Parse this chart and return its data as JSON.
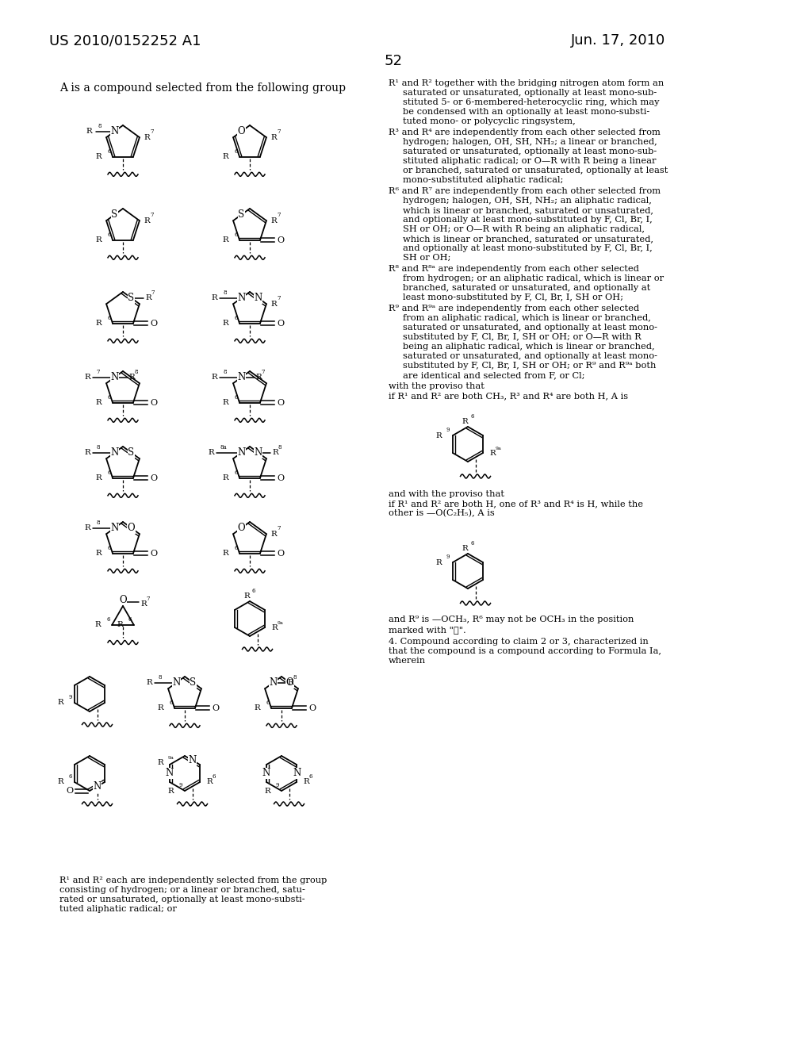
{
  "header_left": "US 2010/0152252 A1",
  "header_right": "Jun. 17, 2010",
  "page_number": "52",
  "background_color": "#ffffff",
  "text_color": "#000000"
}
